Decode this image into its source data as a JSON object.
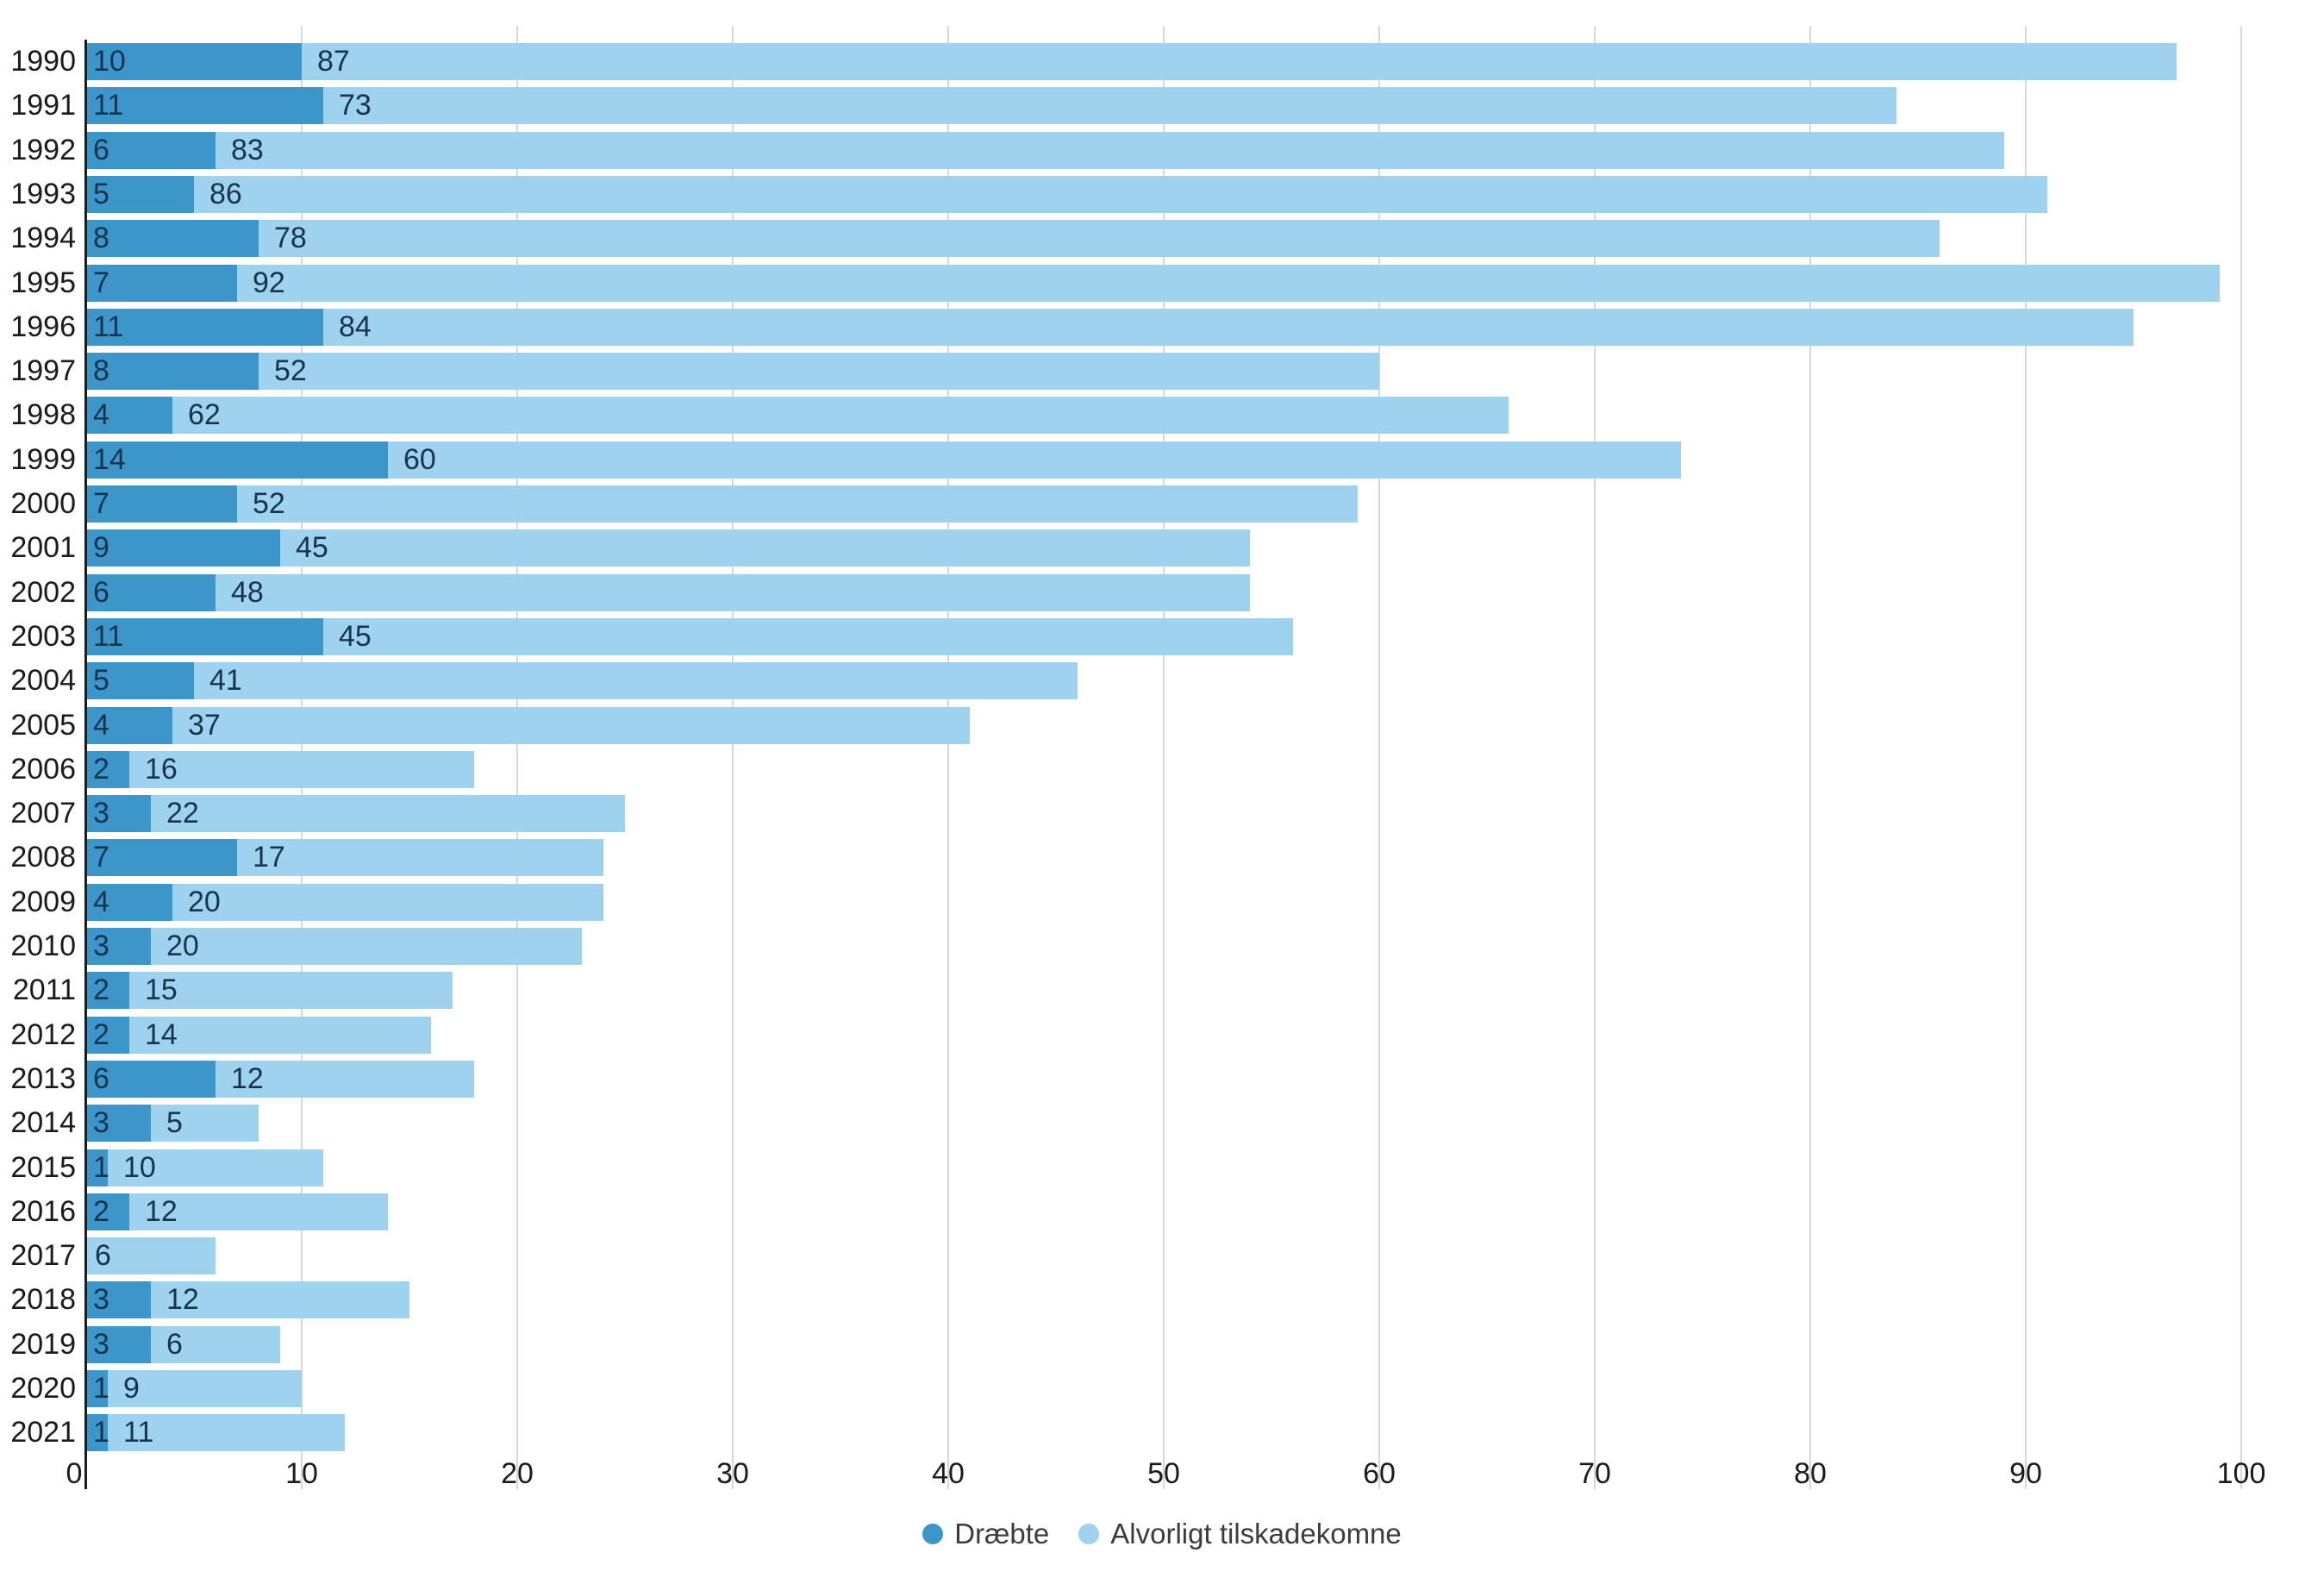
{
  "chart_data": {
    "type": "bar",
    "orientation": "horizontal",
    "stacked": true,
    "title": "",
    "xlabel": "",
    "ylabel": "",
    "categories": [
      "1990",
      "1991",
      "1992",
      "1993",
      "1994",
      "1995",
      "1996",
      "1997",
      "1998",
      "1999",
      "2000",
      "2001",
      "2002",
      "2003",
      "2004",
      "2005",
      "2006",
      "2007",
      "2008",
      "2009",
      "2010",
      "2011",
      "2012",
      "2013",
      "2014",
      "2015",
      "2016",
      "2017",
      "2018",
      "2019",
      "2020",
      "2021"
    ],
    "series": [
      {
        "name": "Dræbte",
        "color": "#3D96CA",
        "values": [
          10,
          11,
          6,
          5,
          8,
          7,
          11,
          8,
          4,
          14,
          7,
          9,
          6,
          11,
          5,
          4,
          2,
          3,
          7,
          4,
          3,
          2,
          2,
          6,
          3,
          1,
          2,
          0,
          3,
          3,
          1,
          1
        ]
      },
      {
        "name": "Alvorligt tilskadekomne",
        "color": "#9FD2EF",
        "values": [
          87,
          73,
          83,
          86,
          78,
          92,
          84,
          52,
          62,
          60,
          52,
          45,
          48,
          45,
          41,
          37,
          16,
          22,
          17,
          20,
          20,
          15,
          14,
          12,
          5,
          10,
          12,
          6,
          12,
          6,
          9,
          11
        ]
      }
    ],
    "xlim": [
      0,
      100
    ],
    "x_ticks": [
      0,
      10,
      20,
      30,
      40,
      50,
      60,
      70,
      80,
      90,
      100
    ],
    "grid": "vertical-gridlines-every-10",
    "legend_position": "bottom-center",
    "value_labels": "at start of each segment; zero-value segments unlabeled",
    "colors": {
      "background": "#ffffff",
      "gridline": "#d8d8d8",
      "axis_line": "#1c1c1c",
      "value_label_text": "#17344f",
      "category_label_text": "#1b1b1b",
      "tick_label_text": "#1b1b1b",
      "legend_text": "#3c3c3c"
    }
  }
}
